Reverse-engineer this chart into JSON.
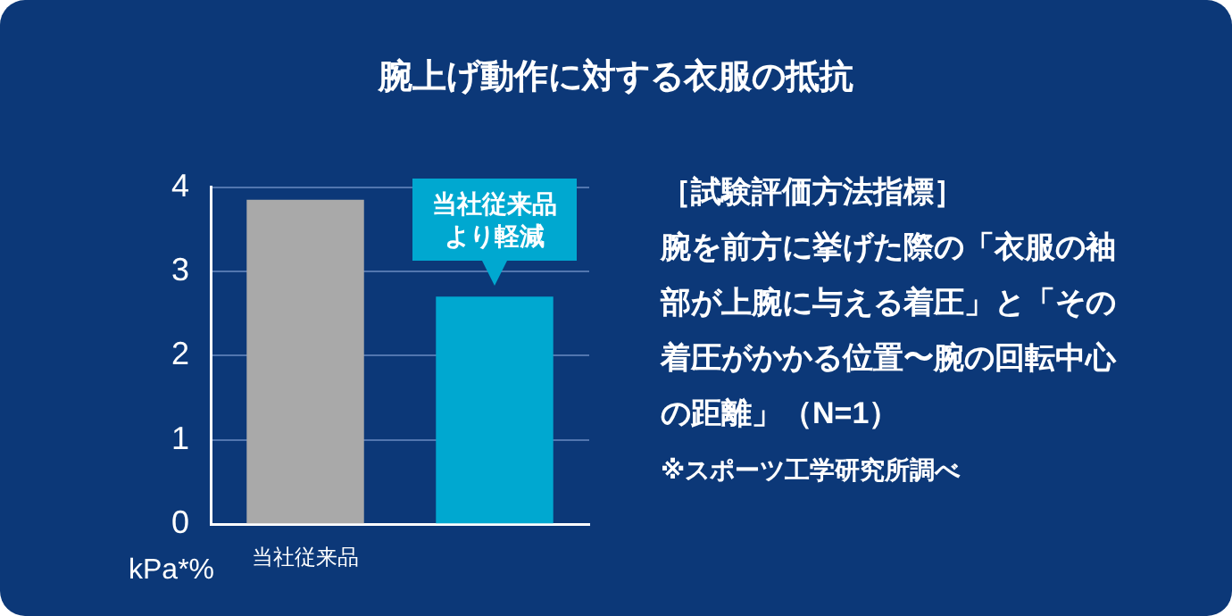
{
  "chart_data": {
    "type": "bar",
    "title": "腕上げ動作に対する衣服の抵抗",
    "categories": [
      "当社従来品",
      null
    ],
    "series": [
      {
        "values": [
          3.85,
          2.7
        ],
        "colors": [
          "#a9a9a9",
          "#00a8d0"
        ]
      }
    ],
    "ylabel": "kPa*%",
    "ylim": [
      0,
      4
    ],
    "yticks": [
      0,
      1,
      2,
      3,
      4
    ],
    "grid": "y",
    "annotations": [
      {
        "text": "当社従来品より軽減",
        "y": 2.7
      },
      "［試験評価方法指標］",
      "腕を前方に挙げた際の「衣服の袖部が上腕に与える着圧」と「その着圧がかかる位置〜腕の回転中心の距離」（N=1）",
      "※スポーツ工学研究所調べ"
    ]
  }
}
